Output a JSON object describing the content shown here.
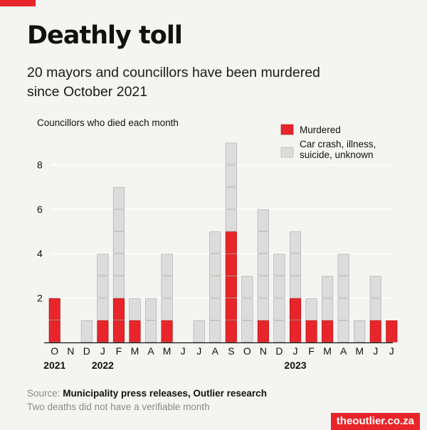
{
  "header": {
    "title": "Deathly toll",
    "subtitle": "20 mayors and councillors have been murdered since October 2021"
  },
  "footer": {
    "source_label": "Source:",
    "source_text": "Municipality press releases, Outlier research",
    "note": "Two deaths did not have a verifiable month",
    "brand": "theoutlier.co.za"
  },
  "colors": {
    "murdered": "#e8252b",
    "other": "#dcdcdc",
    "accent": "#e8252b"
  },
  "chart_data": {
    "type": "bar",
    "stacked": true,
    "unit_blocks": true,
    "ylabel": "Councillors who died each month",
    "yticks": [
      2,
      4,
      6,
      8
    ],
    "ylim": [
      0,
      9
    ],
    "grid": true,
    "legend_position": "top-right",
    "categories": [
      "O",
      "N",
      "D",
      "J",
      "F",
      "M",
      "A",
      "M",
      "J",
      "J",
      "A",
      "S",
      "O",
      "N",
      "D",
      "J",
      "F",
      "M",
      "A",
      "M",
      "J",
      "J"
    ],
    "year_labels": [
      {
        "category_index": 0,
        "label": "2021"
      },
      {
        "category_index": 3,
        "label": "2022"
      },
      {
        "category_index": 15,
        "label": "2023"
      }
    ],
    "series": [
      {
        "name": "Murdered",
        "values": [
          2,
          0,
          0,
          1,
          2,
          1,
          0,
          1,
          0,
          0,
          0,
          5,
          0,
          1,
          0,
          2,
          1,
          1,
          0,
          0,
          1,
          1
        ]
      },
      {
        "name": "Car crash, illness, suicide, unknown",
        "values": [
          0,
          0,
          1,
          3,
          5,
          1,
          2,
          3,
          0,
          1,
          5,
          4,
          3,
          5,
          4,
          3,
          1,
          2,
          4,
          1,
          2,
          0
        ]
      }
    ]
  }
}
